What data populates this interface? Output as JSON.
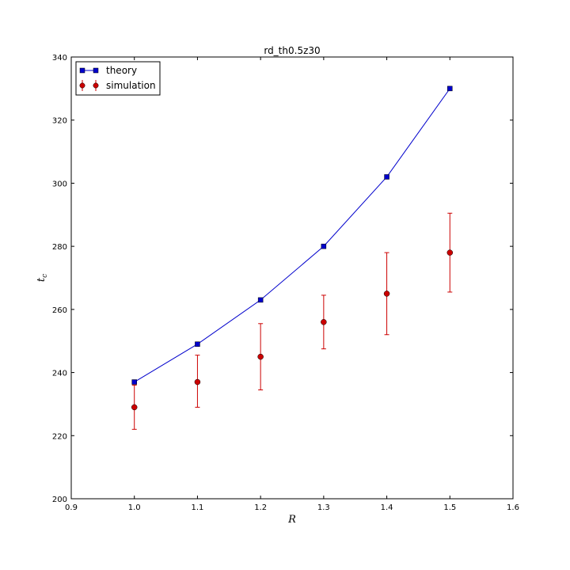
{
  "chart_data": {
    "type": "line",
    "title": "rd_th0.5z30",
    "xlabel": "R",
    "ylabel_main": "t",
    "ylabel_sub": "c",
    "xlim": [
      0.9,
      1.6
    ],
    "ylim": [
      200,
      340
    ],
    "x_ticks": [
      0.9,
      1.0,
      1.1,
      1.2,
      1.3,
      1.4,
      1.5,
      1.6
    ],
    "x_tick_labels": [
      "0.9",
      "1.0",
      "1.1",
      "1.2",
      "1.3",
      "1.4",
      "1.5",
      "1.6"
    ],
    "y_ticks": [
      200,
      220,
      240,
      260,
      280,
      300,
      320,
      340
    ],
    "y_tick_labels": [
      "200",
      "220",
      "240",
      "260",
      "280",
      "300",
      "320",
      "340"
    ],
    "grid": false,
    "legend_position": "top-left",
    "series": [
      {
        "name": "theory",
        "kind": "line-with-square-markers",
        "color": "#0000cc",
        "marker_color": "#0000cc",
        "x": [
          1.0,
          1.1,
          1.2,
          1.3,
          1.4,
          1.5
        ],
        "y": [
          237,
          249,
          263,
          280,
          302,
          330
        ]
      },
      {
        "name": "simulation",
        "kind": "errorbar-circle-markers",
        "color": "#cc0000",
        "marker_color": "#cc0000",
        "x": [
          1.0,
          1.1,
          1.2,
          1.3,
          1.4,
          1.5
        ],
        "y": [
          229,
          237,
          245,
          256,
          265,
          278
        ],
        "y_err_low": [
          222,
          229,
          234.5,
          247.5,
          252,
          265.5
        ],
        "y_err_high": [
          236,
          245.5,
          255.5,
          264.5,
          278,
          290.5
        ]
      }
    ]
  }
}
